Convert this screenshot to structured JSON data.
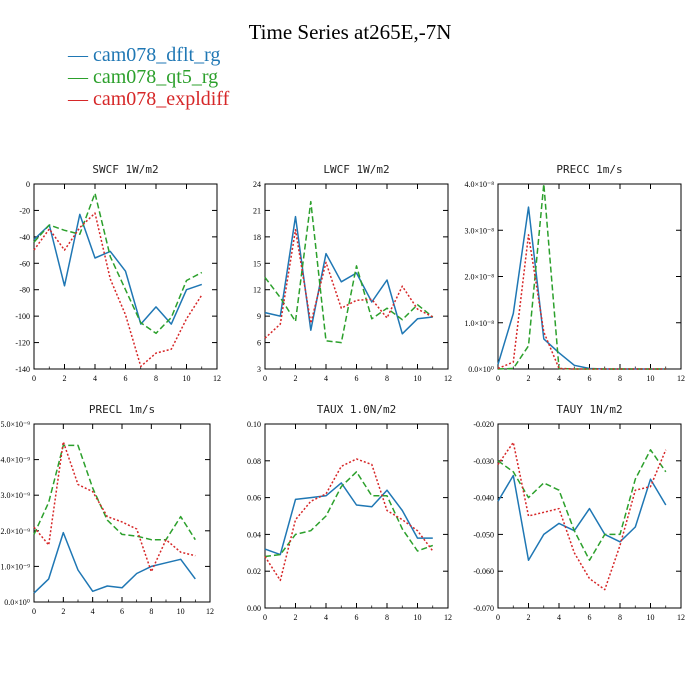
{
  "title": "Time Series at265E,-7N",
  "legend": [
    {
      "label": "cam078_dflt_rg",
      "color": "#1f77b4",
      "dash": ""
    },
    {
      "label": "cam078_qt5_rg",
      "color": "#2ca02c",
      "dash": "6,3"
    },
    {
      "label": "cam078_expldiff",
      "color": "#d62728",
      "dash": "2,2"
    }
  ],
  "chart_data": [
    {
      "type": "line",
      "title": "SWCF",
      "units": "1W/m2",
      "x": [
        0,
        1,
        2,
        3,
        4,
        5,
        6,
        7,
        8,
        9,
        10,
        11
      ],
      "xlim": [
        0,
        12
      ],
      "xticks": [
        0,
        2,
        4,
        6,
        8,
        10,
        12
      ],
      "xtick_labels": [
        "0",
        "2",
        "4",
        "6",
        "8",
        "10",
        "12"
      ],
      "ylim": [
        -140,
        0
      ],
      "yticks": [
        -140,
        -120,
        -100,
        -80,
        -60,
        -40,
        -20,
        0
      ],
      "ytick_labels": [
        "-140",
        "-120",
        "-100",
        "-80",
        "-60",
        "-40",
        "-20",
        "0"
      ],
      "series": [
        {
          "name": "cam078_dflt_rg",
          "values": [
            -42,
            -31,
            -77,
            -23,
            -56,
            -51,
            -66,
            -106,
            -93,
            -106,
            -80,
            -76
          ]
        },
        {
          "name": "cam078_qt5_rg",
          "values": [
            -44,
            -31,
            -35,
            -38,
            -7,
            -55,
            -80,
            -105,
            -113,
            -101,
            -73,
            -67
          ]
        },
        {
          "name": "cam078_expldiff",
          "values": [
            -50,
            -34,
            -50,
            -33,
            -22,
            -72,
            -99,
            -138,
            -128,
            -125,
            -102,
            -84
          ]
        }
      ]
    },
    {
      "type": "line",
      "title": "LWCF",
      "units": "1W/m2",
      "x": [
        0,
        1,
        2,
        3,
        4,
        5,
        6,
        7,
        8,
        9,
        10,
        11
      ],
      "xlim": [
        0,
        12
      ],
      "xticks": [
        0,
        2,
        4,
        6,
        8,
        10,
        12
      ],
      "xtick_labels": [
        "0",
        "2",
        "4",
        "6",
        "8",
        "10",
        "12"
      ],
      "ylim": [
        3,
        24
      ],
      "yticks": [
        3,
        6,
        9,
        12,
        15,
        18,
        21,
        24
      ],
      "ytick_labels": [
        "3",
        "6",
        "9",
        "12",
        "15",
        "18",
        "21",
        "24"
      ],
      "series": [
        {
          "name": "cam078_dflt_rg",
          "values": [
            9.4,
            9.0,
            20.3,
            7.4,
            16.1,
            12.9,
            13.9,
            10.6,
            13.1,
            7.0,
            8.7,
            8.9
          ]
        },
        {
          "name": "cam078_qt5_rg",
          "values": [
            13.4,
            11.1,
            8.4,
            22.0,
            6.2,
            6.0,
            14.7,
            8.7,
            9.9,
            8.6,
            10.3,
            8.9
          ]
        },
        {
          "name": "cam078_expldiff",
          "values": [
            6.5,
            8.1,
            18.8,
            8.2,
            15.1,
            9.9,
            10.8,
            10.9,
            8.8,
            12.4,
            9.8,
            8.9
          ]
        }
      ]
    },
    {
      "type": "line",
      "title": "PRECC",
      "units": "1m/s",
      "x": [
        0,
        1,
        2,
        3,
        4,
        5,
        6,
        7,
        8,
        9,
        10,
        11
      ],
      "xlim": [
        0,
        12
      ],
      "xticks": [
        0,
        2,
        4,
        6,
        8,
        10,
        12
      ],
      "xtick_labels": [
        "0",
        "2",
        "4",
        "6",
        "8",
        "10",
        "12"
      ],
      "ylim": [
        0,
        4e-08
      ],
      "yticks": [
        0,
        1e-08,
        2e-08,
        3e-08,
        4e-08
      ],
      "ytick_labels": [
        "0.0×10⁰",
        "1.0×10⁻⁸",
        "2.0×10⁻⁸",
        "3.0×10⁻⁸",
        "4.0×10⁻⁸"
      ],
      "series": [
        {
          "name": "cam078_dflt_rg",
          "values": [
            1e-09,
            1.2e-08,
            3.5e-08,
            6.5e-09,
            3.5e-09,
            8e-10,
            1e-10,
            0,
            0,
            0,
            0,
            0
          ]
        },
        {
          "name": "cam078_qt5_rg",
          "values": [
            0,
            1e-10,
            5e-09,
            4e-08,
            1e-10,
            0,
            0,
            0,
            0,
            0,
            0,
            0
          ]
        },
        {
          "name": "cam078_expldiff",
          "values": [
            1e-10,
            1.5e-09,
            2.9e-08,
            8e-09,
            1e-10,
            0,
            0,
            0,
            0,
            0,
            0,
            0
          ]
        }
      ]
    },
    {
      "type": "line",
      "title": "PRECL",
      "units": "1m/s",
      "x": [
        0,
        1,
        2,
        3,
        4,
        5,
        6,
        7,
        8,
        9,
        10,
        11
      ],
      "xlim": [
        0,
        12
      ],
      "xticks": [
        0,
        2,
        4,
        6,
        8,
        10,
        12
      ],
      "xtick_labels": [
        "0",
        "2",
        "4",
        "6",
        "8",
        "10",
        "12"
      ],
      "ylim": [
        0,
        5e-09
      ],
      "yticks": [
        0,
        1e-09,
        2e-09,
        3e-09,
        4e-09,
        5e-09
      ],
      "ytick_labels": [
        "0.0×10⁰",
        "1.0×10⁻⁹",
        "2.0×10⁻⁹",
        "3.0×10⁻⁹",
        "4.0×10⁻⁹",
        "5.0×10⁻⁹"
      ],
      "series": [
        {
          "name": "cam078_dflt_rg",
          "values": [
            2.5e-10,
            6.5e-10,
            1.95e-09,
            9e-10,
            3e-10,
            4.5e-10,
            4e-10,
            8e-10,
            1e-09,
            1.1e-09,
            1.2e-09,
            6.5e-10
          ]
        },
        {
          "name": "cam078_qt5_rg",
          "values": [
            1.9e-09,
            2.8e-09,
            4.4e-09,
            4.4e-09,
            3.2e-09,
            2.3e-09,
            1.9e-09,
            1.85e-09,
            1.75e-09,
            1.75e-09,
            2.4e-09,
            1.75e-09
          ]
        },
        {
          "name": "cam078_expldiff",
          "values": [
            2.1e-09,
            1.6e-09,
            4.5e-09,
            3.3e-09,
            3.1e-09,
            2.4e-09,
            2.25e-09,
            2.05e-09,
            8.5e-10,
            1.75e-09,
            1.4e-09,
            1.3e-09
          ]
        }
      ]
    },
    {
      "type": "line",
      "title": "TAUX",
      "units": "1.0N/m2",
      "x": [
        0,
        1,
        2,
        3,
        4,
        5,
        6,
        7,
        8,
        9,
        10,
        11
      ],
      "xlim": [
        0,
        12
      ],
      "xticks": [
        0,
        2,
        4,
        6,
        8,
        10,
        12
      ],
      "xtick_labels": [
        "0",
        "2",
        "4",
        "6",
        "8",
        "10",
        "12"
      ],
      "ylim": [
        0,
        0.1
      ],
      "yticks": [
        0,
        0.02,
        0.04,
        0.06,
        0.08,
        0.1
      ],
      "ytick_labels": [
        "0.00",
        "0.02",
        "0.04",
        "0.06",
        "0.08",
        "0.10"
      ],
      "series": [
        {
          "name": "cam078_dflt_rg",
          "values": [
            0.032,
            0.029,
            0.059,
            0.06,
            0.061,
            0.068,
            0.056,
            0.055,
            0.064,
            0.053,
            0.038,
            0.038
          ]
        },
        {
          "name": "cam078_qt5_rg",
          "values": [
            0.028,
            0.029,
            0.04,
            0.042,
            0.05,
            0.066,
            0.074,
            0.061,
            0.061,
            0.043,
            0.031,
            0.034
          ]
        },
        {
          "name": "cam078_expldiff",
          "values": [
            0.028,
            0.015,
            0.048,
            0.058,
            0.062,
            0.077,
            0.081,
            0.078,
            0.053,
            0.048,
            0.042,
            0.031
          ]
        }
      ]
    },
    {
      "type": "line",
      "title": "TAUY",
      "units": "1N/m2",
      "x": [
        0,
        1,
        2,
        3,
        4,
        5,
        6,
        7,
        8,
        9,
        10,
        11
      ],
      "xlim": [
        0,
        12
      ],
      "xticks": [
        0,
        2,
        4,
        6,
        8,
        10,
        12
      ],
      "xtick_labels": [
        "0",
        "2",
        "4",
        "6",
        "8",
        "10",
        "12"
      ],
      "ylim": [
        -0.07,
        -0.02
      ],
      "yticks": [
        -0.07,
        -0.06,
        -0.05,
        -0.04,
        -0.03,
        -0.02
      ],
      "ytick_labels": [
        "-0.070",
        "-0.060",
        "-0.050",
        "-0.040",
        "-0.030",
        "-0.020"
      ],
      "series": [
        {
          "name": "cam078_dflt_rg",
          "values": [
            -0.041,
            -0.034,
            -0.057,
            -0.05,
            -0.047,
            -0.049,
            -0.043,
            -0.05,
            -0.052,
            -0.048,
            -0.035,
            -0.042
          ]
        },
        {
          "name": "cam078_qt5_rg",
          "values": [
            -0.03,
            -0.033,
            -0.04,
            -0.036,
            -0.038,
            -0.049,
            -0.057,
            -0.05,
            -0.05,
            -0.035,
            -0.027,
            -0.033
          ]
        },
        {
          "name": "cam078_expldiff",
          "values": [
            -0.031,
            -0.025,
            -0.045,
            -0.044,
            -0.043,
            -0.055,
            -0.062,
            -0.065,
            -0.053,
            -0.038,
            -0.037,
            -0.027
          ]
        }
      ]
    }
  ]
}
